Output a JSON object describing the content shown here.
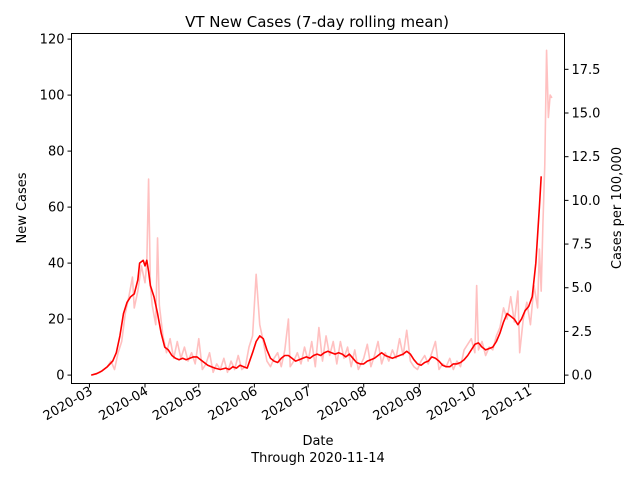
{
  "chart_data": {
    "type": "line",
    "title": "VT New Cases (7-day rolling mean)",
    "xlabel": "Date",
    "xlabel_note": "Through 2020-11-14",
    "ylabel": "New Cases",
    "ylabel_right": "Cases per 100,000",
    "ylim": [
      -3,
      122
    ],
    "ylim_right": [
      -0.48,
      19.55
    ],
    "xlim": [
      "2020-02-20",
      "2020-11-21"
    ],
    "yticks": [
      0,
      20,
      40,
      60,
      80,
      100,
      120
    ],
    "yticks_right": [
      "0.0",
      "2.5",
      "5.0",
      "7.5",
      "10.0",
      "12.5",
      "15.0",
      "17.5"
    ],
    "xticks": [
      "2020-03",
      "2020-04",
      "2020-05",
      "2020-06",
      "2020-07",
      "2020-08",
      "2020-09",
      "2020-10",
      "2020-11"
    ],
    "grid": false,
    "series": [
      {
        "color": "#ffc0c0",
        "points": [
          [
            "2020-03-02",
            0
          ],
          [
            "2020-03-07",
            1
          ],
          [
            "2020-03-09",
            2
          ],
          [
            "2020-03-11",
            3
          ],
          [
            "2020-03-13",
            5
          ],
          [
            "2020-03-15",
            2
          ],
          [
            "2020-03-17",
            8
          ],
          [
            "2020-03-19",
            12
          ],
          [
            "2020-03-21",
            22
          ],
          [
            "2020-03-23",
            28
          ],
          [
            "2020-03-25",
            35
          ],
          [
            "2020-03-26",
            24
          ],
          [
            "2020-03-28",
            30
          ],
          [
            "2020-03-30",
            39
          ],
          [
            "2020-04-01",
            33
          ],
          [
            "2020-04-02",
            40
          ],
          [
            "2020-04-03",
            70
          ],
          [
            "2020-04-04",
            32
          ],
          [
            "2020-04-05",
            25
          ],
          [
            "2020-04-07",
            18
          ],
          [
            "2020-04-08",
            49
          ],
          [
            "2020-04-09",
            25
          ],
          [
            "2020-04-11",
            14
          ],
          [
            "2020-04-13",
            8
          ],
          [
            "2020-04-15",
            13
          ],
          [
            "2020-04-17",
            6
          ],
          [
            "2020-04-19",
            12
          ],
          [
            "2020-04-21",
            6
          ],
          [
            "2020-04-23",
            10
          ],
          [
            "2020-04-25",
            5
          ],
          [
            "2020-04-27",
            8
          ],
          [
            "2020-04-29",
            4
          ],
          [
            "2020-05-01",
            13
          ],
          [
            "2020-05-03",
            2
          ],
          [
            "2020-05-05",
            4
          ],
          [
            "2020-05-07",
            8
          ],
          [
            "2020-05-09",
            1
          ],
          [
            "2020-05-11",
            4
          ],
          [
            "2020-05-13",
            2
          ],
          [
            "2020-05-15",
            6
          ],
          [
            "2020-05-17",
            1
          ],
          [
            "2020-05-19",
            5
          ],
          [
            "2020-05-21",
            2
          ],
          [
            "2020-05-23",
            7
          ],
          [
            "2020-05-25",
            2
          ],
          [
            "2020-05-27",
            3
          ],
          [
            "2020-05-29",
            10
          ],
          [
            "2020-05-31",
            14
          ],
          [
            "2020-06-02",
            36
          ],
          [
            "2020-06-04",
            18
          ],
          [
            "2020-06-06",
            12
          ],
          [
            "2020-06-08",
            5
          ],
          [
            "2020-06-10",
            3
          ],
          [
            "2020-06-12",
            6
          ],
          [
            "2020-06-14",
            8
          ],
          [
            "2020-06-16",
            3
          ],
          [
            "2020-06-18",
            9
          ],
          [
            "2020-06-20",
            20
          ],
          [
            "2020-06-21",
            3
          ],
          [
            "2020-06-23",
            5
          ],
          [
            "2020-06-25",
            8
          ],
          [
            "2020-06-27",
            4
          ],
          [
            "2020-06-29",
            10
          ],
          [
            "2020-07-01",
            5
          ],
          [
            "2020-07-03",
            12
          ],
          [
            "2020-07-05",
            3
          ],
          [
            "2020-07-07",
            17
          ],
          [
            "2020-07-09",
            5
          ],
          [
            "2020-07-11",
            14
          ],
          [
            "2020-07-13",
            7
          ],
          [
            "2020-07-15",
            12
          ],
          [
            "2020-07-17",
            4
          ],
          [
            "2020-07-19",
            12
          ],
          [
            "2020-07-21",
            6
          ],
          [
            "2020-07-23",
            10
          ],
          [
            "2020-07-25",
            3
          ],
          [
            "2020-07-27",
            9
          ],
          [
            "2020-07-29",
            2
          ],
          [
            "2020-08-01",
            6
          ],
          [
            "2020-08-03",
            11
          ],
          [
            "2020-08-05",
            3
          ],
          [
            "2020-08-07",
            7
          ],
          [
            "2020-08-09",
            12
          ],
          [
            "2020-08-11",
            4
          ],
          [
            "2020-08-13",
            8
          ],
          [
            "2020-08-15",
            5
          ],
          [
            "2020-08-17",
            9
          ],
          [
            "2020-08-19",
            6
          ],
          [
            "2020-08-21",
            13
          ],
          [
            "2020-08-23",
            7
          ],
          [
            "2020-08-25",
            16
          ],
          [
            "2020-08-27",
            5
          ],
          [
            "2020-08-29",
            3
          ],
          [
            "2020-08-31",
            2
          ],
          [
            "2020-09-02",
            5
          ],
          [
            "2020-09-04",
            7
          ],
          [
            "2020-09-06",
            4
          ],
          [
            "2020-09-08",
            8
          ],
          [
            "2020-09-10",
            12
          ],
          [
            "2020-09-12",
            2
          ],
          [
            "2020-09-14",
            4
          ],
          [
            "2020-09-16",
            3
          ],
          [
            "2020-09-18",
            6
          ],
          [
            "2020-09-20",
            2
          ],
          [
            "2020-09-22",
            5
          ],
          [
            "2020-09-24",
            3
          ],
          [
            "2020-09-26",
            9
          ],
          [
            "2020-09-28",
            11
          ],
          [
            "2020-09-30",
            13
          ],
          [
            "2020-10-02",
            8
          ],
          [
            "2020-10-03",
            32
          ],
          [
            "2020-10-04",
            9
          ],
          [
            "2020-10-06",
            12
          ],
          [
            "2020-10-08",
            7
          ],
          [
            "2020-10-10",
            10
          ],
          [
            "2020-10-12",
            9
          ],
          [
            "2020-10-14",
            14
          ],
          [
            "2020-10-16",
            17
          ],
          [
            "2020-10-18",
            24
          ],
          [
            "2020-10-20",
            20
          ],
          [
            "2020-10-22",
            28
          ],
          [
            "2020-10-24",
            19
          ],
          [
            "2020-10-26",
            30
          ],
          [
            "2020-10-27",
            8
          ],
          [
            "2020-10-29",
            20
          ],
          [
            "2020-10-31",
            26
          ],
          [
            "2020-11-02",
            18
          ],
          [
            "2020-11-04",
            32
          ],
          [
            "2020-11-06",
            24
          ],
          [
            "2020-11-07",
            45
          ],
          [
            "2020-11-08",
            30
          ],
          [
            "2020-11-09",
            55
          ],
          [
            "2020-11-10",
            75
          ],
          [
            "2020-11-11",
            116
          ],
          [
            "2020-11-12",
            92
          ],
          [
            "2020-11-13",
            100
          ],
          [
            "2020-11-14",
            99
          ]
        ]
      },
      {
        "color": "#ff0000",
        "points": [
          [
            "2020-03-02",
            0
          ],
          [
            "2020-03-05",
            0.5
          ],
          [
            "2020-03-08",
            1.5
          ],
          [
            "2020-03-11",
            3
          ],
          [
            "2020-03-14",
            5
          ],
          [
            "2020-03-16",
            8
          ],
          [
            "2020-03-18",
            14
          ],
          [
            "2020-03-20",
            22
          ],
          [
            "2020-03-22",
            26
          ],
          [
            "2020-03-24",
            28
          ],
          [
            "2020-03-26",
            29
          ],
          [
            "2020-03-28",
            34
          ],
          [
            "2020-03-29",
            40
          ],
          [
            "2020-03-31",
            41
          ],
          [
            "2020-04-01",
            39
          ],
          [
            "2020-04-02",
            41
          ],
          [
            "2020-04-03",
            37
          ],
          [
            "2020-04-04",
            32
          ],
          [
            "2020-04-06",
            28
          ],
          [
            "2020-04-08",
            22
          ],
          [
            "2020-04-10",
            15
          ],
          [
            "2020-04-12",
            10
          ],
          [
            "2020-04-14",
            9
          ],
          [
            "2020-04-16",
            7
          ],
          [
            "2020-04-18",
            6
          ],
          [
            "2020-04-20",
            5.5
          ],
          [
            "2020-04-22",
            6
          ],
          [
            "2020-04-24",
            5.5
          ],
          [
            "2020-04-26",
            6
          ],
          [
            "2020-04-28",
            6.5
          ],
          [
            "2020-04-30",
            6.5
          ],
          [
            "2020-05-02",
            5.5
          ],
          [
            "2020-05-04",
            4.5
          ],
          [
            "2020-05-06",
            3.5
          ],
          [
            "2020-05-08",
            3
          ],
          [
            "2020-05-10",
            2.5
          ],
          [
            "2020-05-13",
            2
          ],
          [
            "2020-05-16",
            2.5
          ],
          [
            "2020-05-18",
            2
          ],
          [
            "2020-05-20",
            3
          ],
          [
            "2020-05-22",
            2.5
          ],
          [
            "2020-05-24",
            3.5
          ],
          [
            "2020-05-26",
            3
          ],
          [
            "2020-05-28",
            2.5
          ],
          [
            "2020-05-31",
            8
          ],
          [
            "2020-06-02",
            12
          ],
          [
            "2020-06-04",
            14
          ],
          [
            "2020-06-06",
            13
          ],
          [
            "2020-06-08",
            9
          ],
          [
            "2020-06-10",
            6
          ],
          [
            "2020-06-12",
            5
          ],
          [
            "2020-06-14",
            4.5
          ],
          [
            "2020-06-16",
            6
          ],
          [
            "2020-06-18",
            7
          ],
          [
            "2020-06-20",
            7
          ],
          [
            "2020-06-22",
            6
          ],
          [
            "2020-06-24",
            5
          ],
          [
            "2020-06-26",
            5.5
          ],
          [
            "2020-06-28",
            6
          ],
          [
            "2020-06-30",
            6.5
          ],
          [
            "2020-07-02",
            6
          ],
          [
            "2020-07-04",
            7
          ],
          [
            "2020-07-06",
            7.5
          ],
          [
            "2020-07-08",
            7
          ],
          [
            "2020-07-10",
            8
          ],
          [
            "2020-07-12",
            8.5
          ],
          [
            "2020-07-14",
            8
          ],
          [
            "2020-07-16",
            7.5
          ],
          [
            "2020-07-18",
            8
          ],
          [
            "2020-07-20",
            7.5
          ],
          [
            "2020-07-22",
            6.5
          ],
          [
            "2020-07-24",
            7.5
          ],
          [
            "2020-07-26",
            6
          ],
          [
            "2020-07-28",
            4.5
          ],
          [
            "2020-07-30",
            4
          ],
          [
            "2020-08-01",
            4
          ],
          [
            "2020-08-03",
            5
          ],
          [
            "2020-08-05",
            5.5
          ],
          [
            "2020-08-07",
            6
          ],
          [
            "2020-08-09",
            7
          ],
          [
            "2020-08-11",
            8
          ],
          [
            "2020-08-13",
            7
          ],
          [
            "2020-08-15",
            6.5
          ],
          [
            "2020-08-17",
            6
          ],
          [
            "2020-08-19",
            6.5
          ],
          [
            "2020-08-21",
            7
          ],
          [
            "2020-08-23",
            7.5
          ],
          [
            "2020-08-25",
            8.5
          ],
          [
            "2020-08-27",
            7.5
          ],
          [
            "2020-08-29",
            5.5
          ],
          [
            "2020-08-31",
            4
          ],
          [
            "2020-09-02",
            3.5
          ],
          [
            "2020-09-04",
            4.5
          ],
          [
            "2020-09-06",
            5
          ],
          [
            "2020-09-08",
            6.5
          ],
          [
            "2020-09-10",
            6
          ],
          [
            "2020-09-12",
            5
          ],
          [
            "2020-09-14",
            3.5
          ],
          [
            "2020-09-16",
            3
          ],
          [
            "2020-09-18",
            3
          ],
          [
            "2020-09-20",
            4
          ],
          [
            "2020-09-22",
            4
          ],
          [
            "2020-09-24",
            4.5
          ],
          [
            "2020-09-26",
            5.5
          ],
          [
            "2020-09-28",
            7
          ],
          [
            "2020-09-30",
            9
          ],
          [
            "2020-10-02",
            11
          ],
          [
            "2020-10-04",
            11.5
          ],
          [
            "2020-10-06",
            10
          ],
          [
            "2020-10-08",
            9
          ],
          [
            "2020-10-10",
            9.5
          ],
          [
            "2020-10-12",
            10
          ],
          [
            "2020-10-14",
            12
          ],
          [
            "2020-10-16",
            15
          ],
          [
            "2020-10-18",
            19
          ],
          [
            "2020-10-20",
            22
          ],
          [
            "2020-10-22",
            21
          ],
          [
            "2020-10-24",
            20
          ],
          [
            "2020-10-26",
            18
          ],
          [
            "2020-10-28",
            20
          ],
          [
            "2020-10-30",
            23
          ],
          [
            "2020-11-01",
            24.5
          ],
          [
            "2020-11-03",
            28
          ],
          [
            "2020-11-05",
            40
          ],
          [
            "2020-11-06",
            50
          ],
          [
            "2020-11-07",
            60
          ],
          [
            "2020-11-08",
            71
          ]
        ]
      }
    ]
  }
}
